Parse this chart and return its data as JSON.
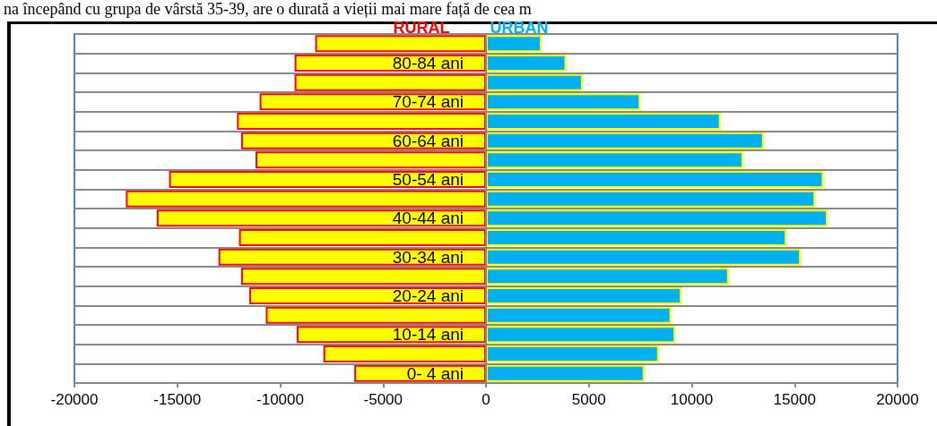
{
  "chart_data": {
    "type": "bar",
    "orientation": "horizontal",
    "stacked": true,
    "annotations": [
      "na începând cu grupa de vârstă 35-39, are o durată a vieții mai mare față de cea m"
    ],
    "categories": [
      null,
      "80-84 ani",
      null,
      "70-74 ani",
      null,
      "60-64 ani",
      null,
      "50-54 ani",
      null,
      "40-44 ani",
      null,
      "30-34 ani",
      null,
      "20-24 ani",
      null,
      "10-14 ani",
      null,
      "0- 4 ani"
    ],
    "series": [
      {
        "name": "RURAL",
        "color": "#ffff00",
        "values": [
          -8300,
          -9300,
          -9300,
          -11000,
          -12100,
          -11900,
          -11200,
          -15400,
          -17500,
          -16000,
          -12000,
          -13000,
          -11900,
          -11500,
          -10700,
          -9200,
          -7900,
          -6400
        ]
      },
      {
        "name": "URBAN",
        "color": "#00b0f0",
        "values": [
          2700,
          3900,
          4700,
          7500,
          11400,
          13500,
          12500,
          16400,
          16000,
          16600,
          14600,
          15300,
          11800,
          9500,
          9000,
          9200,
          8400,
          7700
        ]
      }
    ],
    "xlim": [
      -20000,
      20000
    ],
    "xticks": [
      -20000,
      -15000,
      -10000,
      -5000,
      0,
      5000,
      10000,
      15000,
      20000
    ],
    "grid": "y",
    "legend": "top"
  }
}
